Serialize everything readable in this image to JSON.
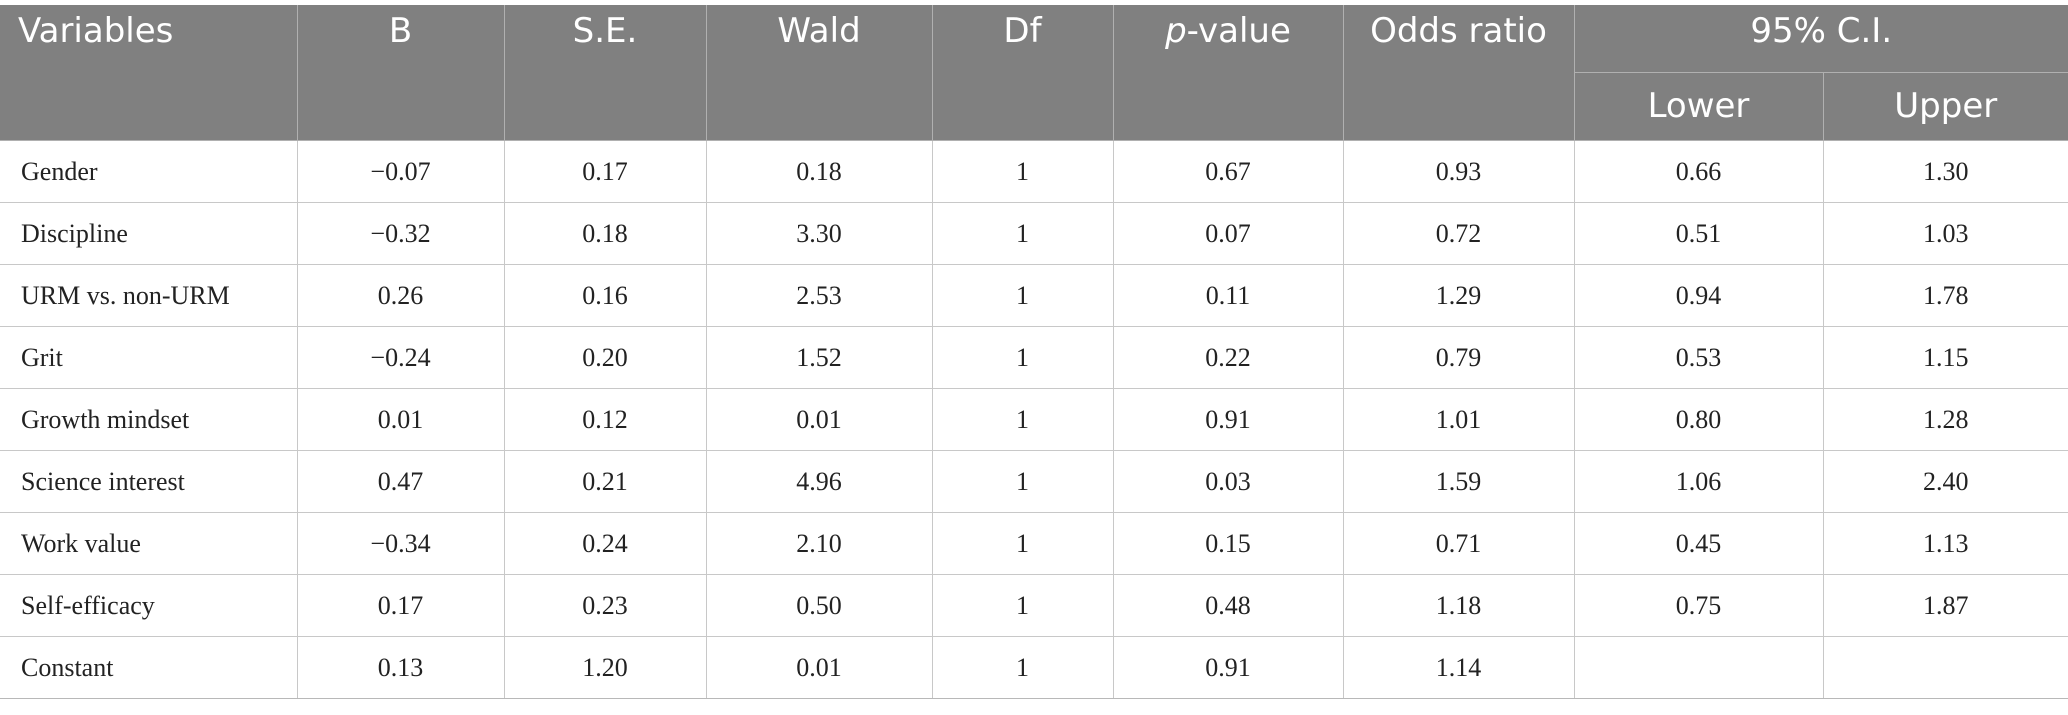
{
  "table": {
    "headers": {
      "variables": "Variables",
      "b": "B",
      "se": "S.E.",
      "wald": "Wald",
      "df": "Df",
      "p_italic": "p",
      "p_rest": "-value",
      "odds_ratio": "Odds ratio",
      "ci": "95% C.I.",
      "lower": "Lower",
      "upper": "Upper"
    },
    "rows": [
      {
        "variable": "Gender",
        "b": "−0.07",
        "se": "0.17",
        "wald": "0.18",
        "df": "1",
        "p": "0.67",
        "or": "0.93",
        "lower": "0.66",
        "upper": "1.30"
      },
      {
        "variable": "Discipline",
        "b": "−0.32",
        "se": "0.18",
        "wald": "3.30",
        "df": "1",
        "p": "0.07",
        "or": "0.72",
        "lower": "0.51",
        "upper": "1.03"
      },
      {
        "variable": "URM vs. non-URM",
        "b": "0.26",
        "se": "0.16",
        "wald": "2.53",
        "df": "1",
        "p": "0.11",
        "or": "1.29",
        "lower": "0.94",
        "upper": "1.78"
      },
      {
        "variable": "Grit",
        "b": "−0.24",
        "se": "0.20",
        "wald": "1.52",
        "df": "1",
        "p": "0.22",
        "or": "0.79",
        "lower": "0.53",
        "upper": "1.15"
      },
      {
        "variable": "Growth mindset",
        "b": "0.01",
        "se": "0.12",
        "wald": "0.01",
        "df": "1",
        "p": "0.91",
        "or": "1.01",
        "lower": "0.80",
        "upper": "1.28"
      },
      {
        "variable": "Science interest",
        "b": "0.47",
        "se": "0.21",
        "wald": "4.96",
        "df": "1",
        "p": "0.03",
        "or": "1.59",
        "lower": "1.06",
        "upper": "2.40"
      },
      {
        "variable": "Work value",
        "b": "−0.34",
        "se": "0.24",
        "wald": "2.10",
        "df": "1",
        "p": "0.15",
        "or": "0.71",
        "lower": "0.45",
        "upper": "1.13"
      },
      {
        "variable": "Self-efficacy",
        "b": "0.17",
        "se": "0.23",
        "wald": "0.50",
        "df": "1",
        "p": "0.48",
        "or": "1.18",
        "lower": "0.75",
        "upper": "1.87"
      },
      {
        "variable": "Constant",
        "b": "0.13",
        "se": "1.20",
        "wald": "0.01",
        "df": "1",
        "p": "0.91",
        "or": "1.14",
        "lower": "",
        "upper": ""
      }
    ]
  },
  "colors": {
    "header_bg": "#808080",
    "header_text": "#ffffff",
    "grid": "#c8c8c8"
  }
}
